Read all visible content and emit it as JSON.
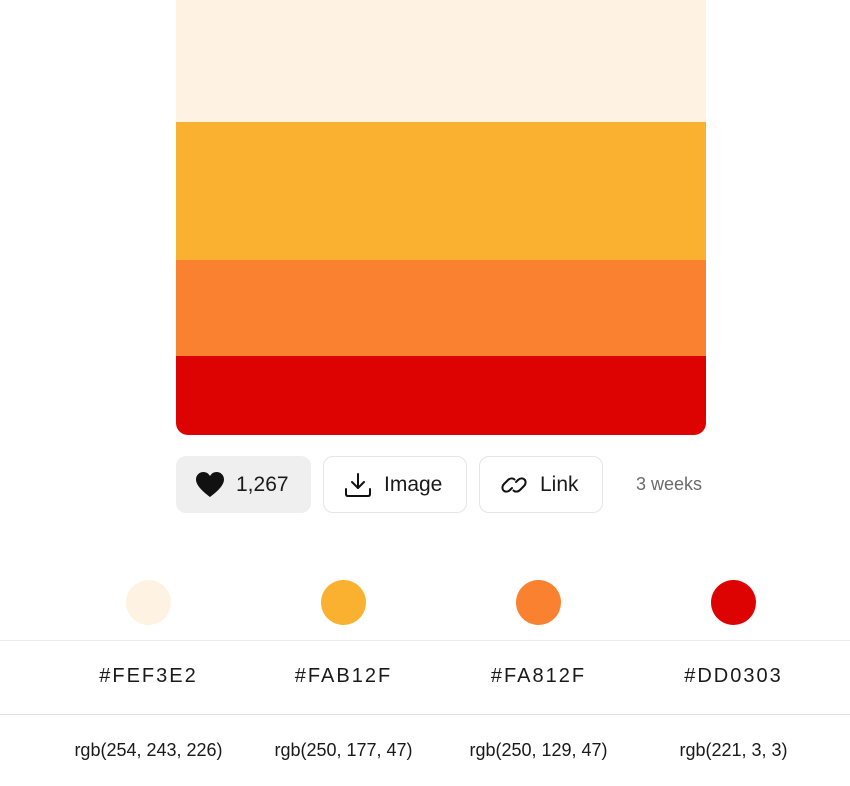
{
  "palette": {
    "colors": [
      {
        "hex": "#FEF3E2",
        "rgb": "rgb(254, 243, 226)",
        "swatch": "#FEF3E2"
      },
      {
        "hex": "#FAB12F",
        "rgb": "rgb(250, 177, 47)",
        "swatch": "#FAB12F"
      },
      {
        "hex": "#FA812F",
        "rgb": "rgb(250, 129, 47)",
        "swatch": "#FA812F"
      },
      {
        "hex": "#DD0303",
        "rgb": "rgb(221, 3, 3)",
        "swatch": "#DD0303"
      }
    ]
  },
  "actions": {
    "likes": "1,267",
    "image_label": "Image",
    "link_label": "Link",
    "age": "3 weeks"
  },
  "icons": {
    "like": "heart-icon",
    "image": "download-icon",
    "link": "link-icon"
  }
}
